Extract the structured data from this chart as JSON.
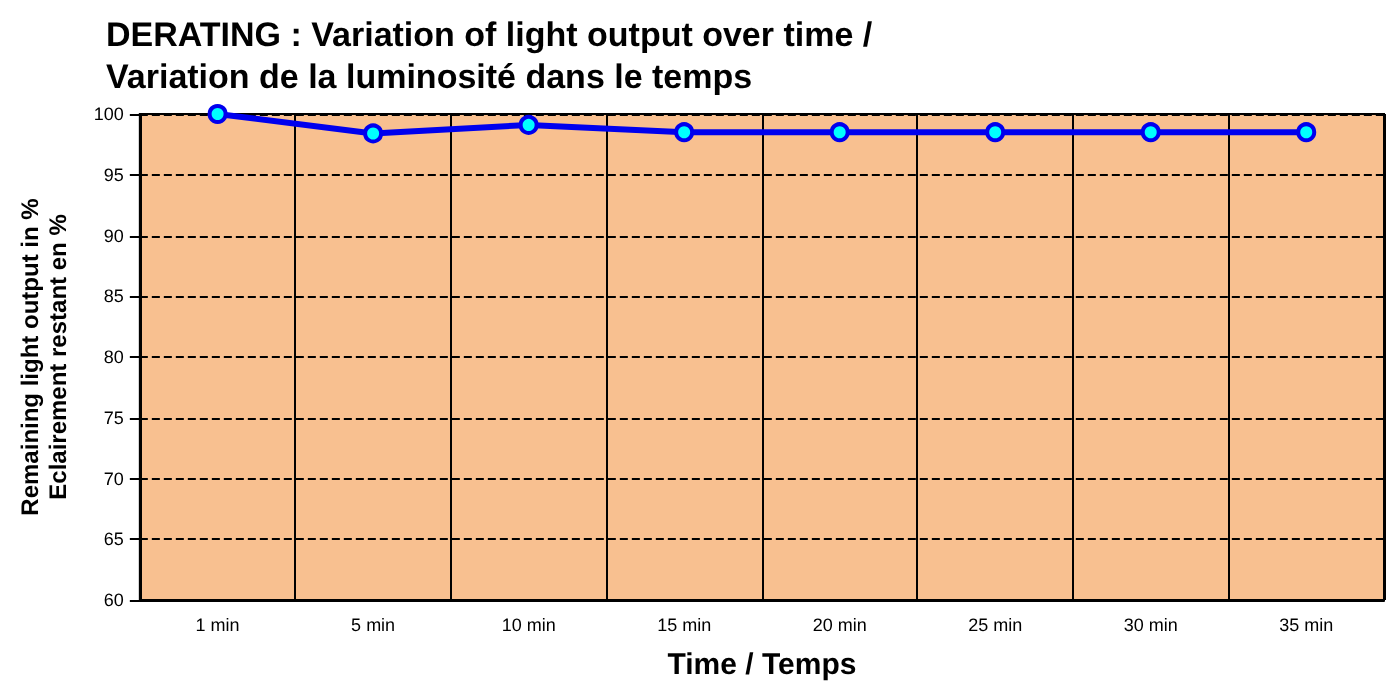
{
  "chart_data": {
    "type": "line",
    "title": "DERATING : Variation of light output over time /\nVariation de la luminosité dans le temps",
    "xlabel": "Time / Temps",
    "ylabel": "Remaining light output in %\nEclairement restant en %",
    "categories": [
      "1 min",
      "5 min",
      "10 min",
      "15 min",
      "20 min",
      "25 min",
      "30 min",
      "35 min"
    ],
    "series": [
      {
        "color": "#0000ee",
        "values": [
          100,
          98.4,
          99.1,
          98.5,
          98.5,
          98.5,
          98.5,
          98.5
        ]
      }
    ],
    "ylim": [
      60,
      100
    ],
    "yticks": [
      60,
      65,
      70,
      75,
      80,
      85,
      90,
      95,
      100
    ],
    "grid": true,
    "marker": "circle",
    "line_style": "solid"
  }
}
